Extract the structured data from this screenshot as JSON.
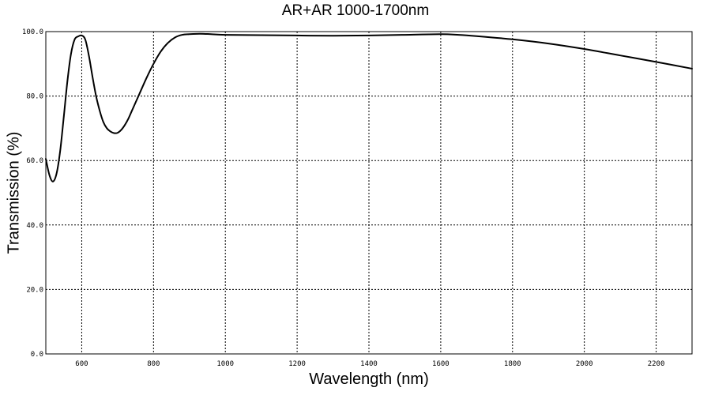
{
  "chart_data": {
    "type": "line",
    "title": "AR+AR 1000-1700nm",
    "xlabel": "Wavelength (nm)",
    "ylabel": "Transmission (%)",
    "xlim": [
      500,
      2300
    ],
    "ylim": [
      0,
      100
    ],
    "x_ticks": [
      600,
      800,
      1000,
      1200,
      1400,
      1600,
      1800,
      2000,
      2200
    ],
    "x_tick_labels": [
      "600",
      "800",
      "1000",
      "1200",
      "1400",
      "1600",
      "1800",
      "2000",
      "2200"
    ],
    "y_ticks": [
      0,
      20,
      40,
      60,
      80,
      100
    ],
    "y_tick_labels": [
      "0.0",
      "20.0",
      "40.0",
      "60.0",
      "80.0",
      "100.0"
    ],
    "grid": true,
    "legend": "none",
    "line_color": "#000000",
    "series": [
      {
        "x": [
          500,
          510,
          520,
          530,
          540,
          550,
          560,
          570,
          580,
          590,
          600,
          610,
          620,
          630,
          640,
          650,
          660,
          670,
          680,
          690,
          700,
          710,
          720,
          730,
          740,
          750,
          760,
          780,
          800,
          820,
          840,
          860,
          880,
          900,
          920,
          940,
          960,
          1000,
          1100,
          1200,
          1300,
          1400,
          1500,
          1600,
          1650,
          1700,
          1800,
          1900,
          2000,
          2100,
          2200,
          2300
        ],
        "y": [
          60.5,
          55.5,
          53.5,
          56.0,
          63.0,
          73.5,
          84.5,
          93.0,
          97.5,
          98.5,
          98.8,
          97.5,
          92.5,
          86.0,
          80.0,
          75.5,
          72.0,
          70.0,
          69.0,
          68.5,
          68.6,
          69.5,
          71.0,
          73.0,
          75.5,
          78.0,
          80.5,
          85.5,
          90.0,
          93.8,
          96.5,
          98.2,
          99.0,
          99.2,
          99.3,
          99.3,
          99.2,
          99.0,
          98.9,
          98.8,
          98.7,
          98.8,
          99.0,
          99.2,
          99.0,
          98.6,
          97.6,
          96.3,
          94.6,
          92.6,
          90.6,
          88.5
        ]
      }
    ]
  }
}
